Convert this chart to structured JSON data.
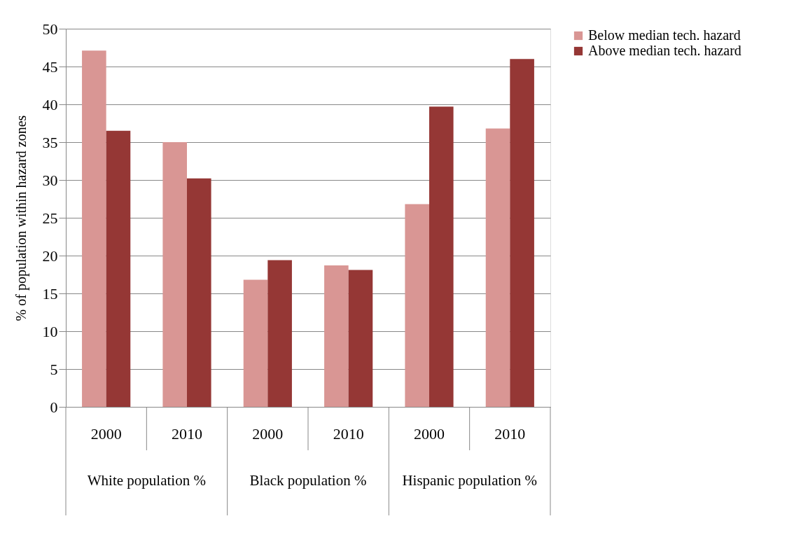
{
  "chart_data": {
    "type": "bar",
    "ylabel": "% of population within hazard zones",
    "categories": [
      "2000",
      "2010",
      "2000",
      "2010",
      "2000",
      "2010"
    ],
    "annotations": [
      "White population %",
      "Black population %",
      "Hispanic population %"
    ],
    "series": [
      {
        "name": "Below median tech. hazard",
        "color": "#d99694",
        "values": [
          47.1,
          35.0,
          16.8,
          18.7,
          26.8,
          36.8
        ]
      },
      {
        "name": "Above median tech. hazard",
        "color": "#953735",
        "values": [
          36.5,
          30.2,
          19.4,
          18.1,
          39.7,
          46.0
        ]
      }
    ],
    "ylim": [
      0,
      50
    ],
    "yticks": [
      0,
      5,
      10,
      15,
      20,
      25,
      30,
      35,
      40,
      45,
      50
    ],
    "grid": "y",
    "legend": "right"
  }
}
